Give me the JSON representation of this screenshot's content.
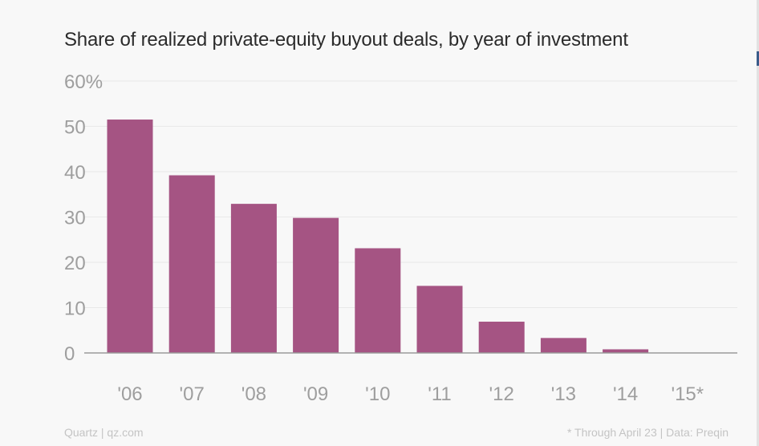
{
  "title": "Share of realized private-equity buyout deals, by year of investment",
  "footer": {
    "source": "Quartz | qz.com",
    "note": "* Through April 23 | Data: Preqin"
  },
  "colors": {
    "bar": "#a55483",
    "grid": "#e9e9e9",
    "axis": "#9a9a9a",
    "tick_label": "#9e9e9e"
  },
  "chart_data": {
    "type": "bar",
    "title": "Share of realized private-equity buyout deals, by year of investment",
    "categories": [
      "'06",
      "'07",
      "'08",
      "'09",
      "'10",
      "'11",
      "'12",
      "'13",
      "'14",
      "'15*"
    ],
    "values": [
      51.5,
      39.2,
      32.9,
      29.8,
      23.1,
      14.8,
      6.9,
      3.3,
      0.8,
      0
    ],
    "ylim": [
      0,
      60
    ],
    "yticks": [
      0,
      10,
      20,
      30,
      40,
      50,
      60
    ],
    "ytick_labels": [
      "0",
      "10",
      "20",
      "30",
      "40",
      "50",
      "60%"
    ],
    "xlabel": "",
    "ylabel": "",
    "grid": true
  }
}
